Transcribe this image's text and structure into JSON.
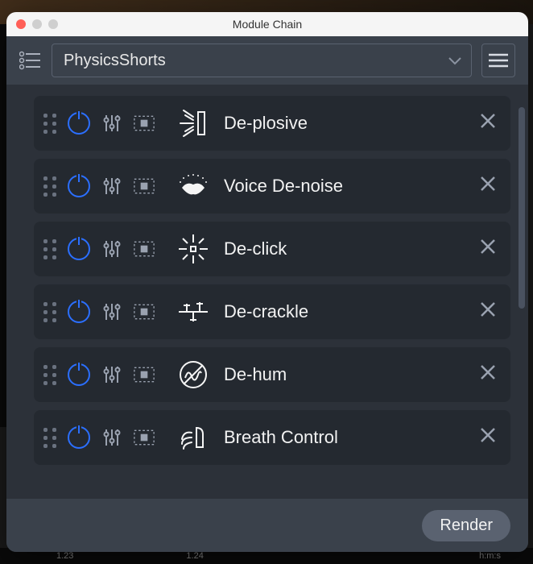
{
  "window": {
    "title": "Module Chain"
  },
  "header": {
    "preset_name": "PhysicsShorts"
  },
  "modules": [
    {
      "label": "De-plosive",
      "icon": "plosive"
    },
    {
      "label": "Voice De-noise",
      "icon": "lips"
    },
    {
      "label": "De-click",
      "icon": "spark"
    },
    {
      "label": "De-crackle",
      "icon": "crackle"
    },
    {
      "label": "De-hum",
      "icon": "nohum"
    },
    {
      "label": "Breath Control",
      "icon": "breath"
    }
  ],
  "footer": {
    "render_label": "Render"
  },
  "colors": {
    "window_bg": "#2c3139",
    "header_bg": "#3a414b",
    "module_bg": "#242930",
    "accent": "#2b6fff",
    "text": "#f2f2f2",
    "muted": "#9aa2b0",
    "border": "#5a6270"
  },
  "timeline": {
    "t0": "1.23",
    "t1": "1.24",
    "unit": "h:m:s"
  }
}
